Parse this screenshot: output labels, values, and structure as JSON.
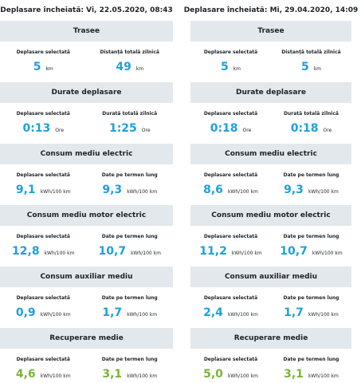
{
  "colors": {
    "value": "#1ea0dc",
    "recovery": "#7bb631",
    "header_bg": "#e3e8ec"
  },
  "panels": [
    {
      "title": "Deplasare încheiată: Vi, 22.05.2020, 08:43",
      "sections": [
        {
          "heading": "Trasee",
          "left": {
            "label": "Deplasare selectată",
            "value": "5",
            "unit": "km"
          },
          "right": {
            "label": "Distanță totală zilnică",
            "value": "49",
            "unit": "km"
          }
        },
        {
          "heading": "Durate deplasare",
          "left": {
            "label": "Deplasare selectată",
            "value": "0:13",
            "unit": "Ore"
          },
          "right": {
            "label": "Durată totală zilnică",
            "value": "1:25",
            "unit": "Ore"
          }
        },
        {
          "heading": "Consum mediu electric",
          "left": {
            "label": "Deplasare selectată",
            "value": "9,1",
            "unit": "kWh/100 km"
          },
          "right": {
            "label": "Date pe termen lung",
            "value": "9,3",
            "unit": "kWh/100 km"
          }
        },
        {
          "heading": "Consum mediu motor electric",
          "left": {
            "label": "Deplasare selectată",
            "value": "12,8",
            "unit": "kWh/100 km"
          },
          "right": {
            "label": "Date pe termen lung",
            "value": "10,7",
            "unit": "kWh/100 km"
          }
        },
        {
          "heading": "Consum auxiliar mediu",
          "left": {
            "label": "Deplasare selectată",
            "value": "0,9",
            "unit": "kWh/100 km"
          },
          "right": {
            "label": "Date pe termen lung",
            "value": "1,7",
            "unit": "kWh/100 km"
          }
        },
        {
          "heading": "Recuperare medie",
          "left": {
            "label": "Deplasare selectată",
            "value": "4,6",
            "unit": "kWh/100 km"
          },
          "right": {
            "label": "Date pe termen lung",
            "value": "3,1",
            "unit": "kWh/100 km"
          }
        }
      ]
    },
    {
      "title": "Deplasare încheiată: Mi, 29.04.2020, 14:09",
      "sections": [
        {
          "heading": "Trasee",
          "left": {
            "label": "Deplasare selectată",
            "value": "5",
            "unit": "km"
          },
          "right": {
            "label": "Distanță totală zilnică",
            "value": "5",
            "unit": "km"
          }
        },
        {
          "heading": "Durate deplasare",
          "left": {
            "label": "Deplasare selectată",
            "value": "0:18",
            "unit": "Ore"
          },
          "right": {
            "label": "Durată totală zilnică",
            "value": "0:18",
            "unit": "Ore"
          }
        },
        {
          "heading": "Consum mediu electric",
          "left": {
            "label": "Deplasare selectată",
            "value": "8,6",
            "unit": "kWh/100 km"
          },
          "right": {
            "label": "Date pe termen lung",
            "value": "9,3",
            "unit": "kWh/100 km"
          }
        },
        {
          "heading": "Consum mediu motor electric",
          "left": {
            "label": "Deplasare selectată",
            "value": "11,2",
            "unit": "kWh/100 km"
          },
          "right": {
            "label": "Date pe termen lung",
            "value": "10,7",
            "unit": "kWh/100 km"
          }
        },
        {
          "heading": "Consum auxiliar mediu",
          "left": {
            "label": "Deplasare selectată",
            "value": "2,4",
            "unit": "kWh/100 km"
          },
          "right": {
            "label": "Date pe termen lung",
            "value": "1,7",
            "unit": "kWh/100 km"
          }
        },
        {
          "heading": "Recuperare medie",
          "left": {
            "label": "Deplasare selectată",
            "value": "5,0",
            "unit": "kWh/100 km"
          },
          "right": {
            "label": "Date pe termen lung",
            "value": "3,1",
            "unit": "kWh/100 km"
          }
        }
      ]
    }
  ]
}
